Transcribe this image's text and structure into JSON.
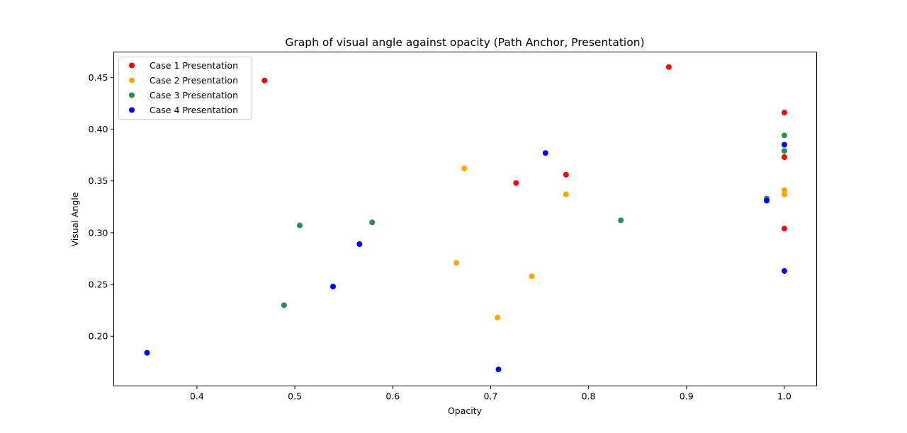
{
  "chart_data": {
    "type": "scatter",
    "title": "Graph of visual angle against opacity (Path Anchor, Presentation)",
    "xlabel": "Opacity",
    "ylabel": "Visual Angle",
    "xlim": [
      0.315,
      1.033
    ],
    "ylim": [
      0.152,
      0.4745
    ],
    "xticks": [
      0.4,
      0.5,
      0.6,
      0.7,
      0.8,
      0.9,
      1.0
    ],
    "xtick_labels": [
      "0.4",
      "0.5",
      "0.6",
      "0.7",
      "0.8",
      "0.9",
      "1.0"
    ],
    "yticks": [
      0.2,
      0.25,
      0.3,
      0.35,
      0.4,
      0.45
    ],
    "ytick_labels": [
      "0.20",
      "0.25",
      "0.30",
      "0.35",
      "0.40",
      "0.45"
    ],
    "grid": false,
    "legend": "upper-left",
    "series": [
      {
        "name": "Case 1 Presentation",
        "color": "#ff0000",
        "points": [
          [
            0.469,
            0.447
          ],
          [
            0.882,
            0.46
          ],
          [
            1.0,
            0.416
          ],
          [
            1.0,
            0.373
          ],
          [
            0.777,
            0.356
          ],
          [
            0.726,
            0.348
          ],
          [
            1.0,
            0.304
          ]
        ]
      },
      {
        "name": "Case 2 Presentation",
        "color": "#ffa500",
        "points": [
          [
            0.673,
            0.362
          ],
          [
            0.777,
            0.337
          ],
          [
            1.0,
            0.341
          ],
          [
            1.0,
            0.337
          ],
          [
            0.665,
            0.271
          ],
          [
            0.742,
            0.258
          ],
          [
            0.707,
            0.218
          ]
        ]
      },
      {
        "name": "Case 3 Presentation",
        "color": "#2e8b57",
        "points": [
          [
            1.0,
            0.394
          ],
          [
            1.0,
            0.379
          ],
          [
            0.982,
            0.333
          ],
          [
            0.579,
            0.31
          ],
          [
            0.505,
            0.307
          ],
          [
            0.833,
            0.312
          ],
          [
            0.489,
            0.23
          ]
        ]
      },
      {
        "name": "Case 4 Presentation",
        "color": "#0000ff",
        "points": [
          [
            1.0,
            0.385
          ],
          [
            0.756,
            0.377
          ],
          [
            0.982,
            0.331
          ],
          [
            0.566,
            0.289
          ],
          [
            0.539,
            0.248
          ],
          [
            1.0,
            0.263
          ],
          [
            0.349,
            0.184
          ],
          [
            0.708,
            0.168
          ]
        ]
      }
    ]
  }
}
